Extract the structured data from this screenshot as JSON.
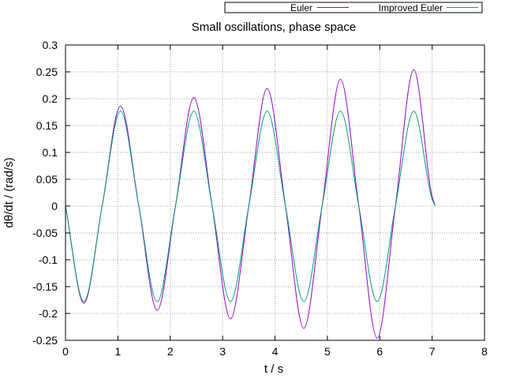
{
  "chart_data": {
    "type": "line",
    "title": "Small oscillations, phase space",
    "xlabel": "t / s",
    "ylabel": "dθ/dt / (rad/s)",
    "xlim": [
      0,
      8
    ],
    "ylim": [
      -0.25,
      0.3
    ],
    "xticks": [
      0,
      1,
      2,
      3,
      4,
      5,
      6,
      7,
      8
    ],
    "yticks": [
      -0.25,
      -0.2,
      -0.15,
      -0.1,
      -0.05,
      0,
      0.05,
      0.1,
      0.15,
      0.2,
      0.25,
      0.3
    ],
    "grid": true,
    "legend_position": "top-right",
    "series": [
      {
        "name": "Euler",
        "color": "#9400d3",
        "x": [
          0,
          0.35,
          0.7,
          1.05,
          1.4,
          1.75,
          2.1,
          2.45,
          2.8,
          3.15,
          3.5,
          3.85,
          4.2,
          4.55,
          4.9,
          5.25,
          5.6,
          5.95,
          6.3,
          6.65,
          7.0,
          7.06
        ],
        "y": [
          0,
          -0.181,
          0,
          0.186,
          0,
          -0.194,
          0,
          0.202,
          0,
          -0.21,
          0,
          0.219,
          0,
          -0.228,
          0,
          0.236,
          0,
          -0.246,
          0,
          0.254,
          0.018,
          0
        ]
      },
      {
        "name": "Improved Euler",
        "color": "#009e73",
        "x": [
          0,
          0.35,
          0.7,
          1.05,
          1.4,
          1.75,
          2.1,
          2.45,
          2.8,
          3.15,
          3.5,
          3.85,
          4.2,
          4.55,
          4.9,
          5.25,
          5.6,
          5.95,
          6.3,
          6.65,
          7.0,
          7.06
        ],
        "y": [
          0,
          -0.178,
          0,
          0.177,
          0,
          -0.178,
          0,
          0.177,
          0,
          -0.178,
          0,
          0.177,
          0,
          -0.178,
          0,
          0.177,
          0,
          -0.178,
          0,
          0.177,
          0.013,
          0
        ]
      }
    ]
  }
}
